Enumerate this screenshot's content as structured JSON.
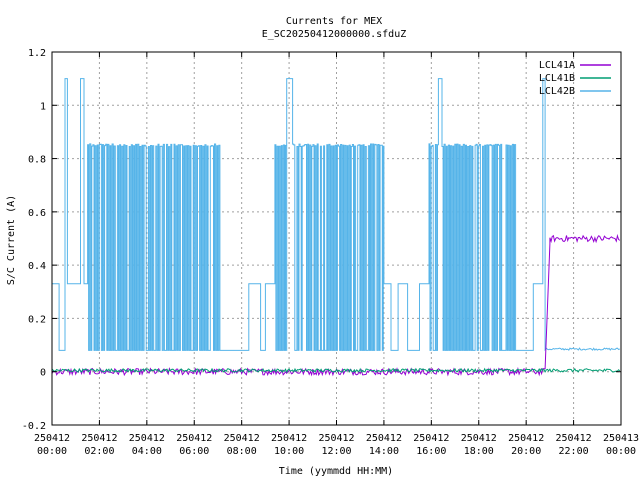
{
  "chart_data": {
    "type": "line",
    "title": "Currents for MEX",
    "subtitle": "E_SC20250412000000.sfduZ",
    "xlabel": "Time (yymmdd HH:MM)",
    "ylabel": "S/C Current (A)",
    "ylim": [
      -0.2,
      1.2
    ],
    "xlim_hours": [
      0,
      24
    ],
    "yticks": [
      "-0.2",
      "0",
      "0.2",
      "0.4",
      "0.6",
      "0.8",
      "1",
      "1.2"
    ],
    "xticks": [
      {
        "date": "250412",
        "time": "00:00"
      },
      {
        "date": "250412",
        "time": "02:00"
      },
      {
        "date": "250412",
        "time": "04:00"
      },
      {
        "date": "250412",
        "time": "06:00"
      },
      {
        "date": "250412",
        "time": "08:00"
      },
      {
        "date": "250412",
        "time": "10:00"
      },
      {
        "date": "250412",
        "time": "12:00"
      },
      {
        "date": "250412",
        "time": "14:00"
      },
      {
        "date": "250412",
        "time": "16:00"
      },
      {
        "date": "250412",
        "time": "18:00"
      },
      {
        "date": "250412",
        "time": "20:00"
      },
      {
        "date": "250412",
        "time": "22:00"
      },
      {
        "date": "250413",
        "time": "00:00"
      }
    ],
    "grid": true,
    "legend_position": "top-right",
    "series": [
      {
        "name": "LCL41A",
        "color": "#9400d3",
        "segments": [
          {
            "from": 0.0,
            "to": 20.8,
            "level": 0.0,
            "pattern": "noise",
            "amp": 0.012
          },
          {
            "from": 20.8,
            "to": 21.0,
            "level": 0.48,
            "pattern": "ramp"
          },
          {
            "from": 21.0,
            "to": 24.0,
            "level": 0.5,
            "pattern": "noise",
            "amp": 0.012
          }
        ]
      },
      {
        "name": "LCL41B",
        "color": "#009e73",
        "segments": [
          {
            "from": 0.0,
            "to": 24.0,
            "level": 0.005,
            "pattern": "noise",
            "amp": 0.006
          }
        ]
      },
      {
        "name": "LCL42B",
        "color": "#56b4e9",
        "segments": [
          {
            "from": 0.0,
            "to": 0.3,
            "level": 0.33,
            "pattern": "flat"
          },
          {
            "from": 0.3,
            "to": 0.55,
            "level": 0.08,
            "pattern": "flat"
          },
          {
            "from": 0.55,
            "to": 0.65,
            "level": 1.1,
            "pattern": "spike"
          },
          {
            "from": 0.65,
            "to": 1.2,
            "level": 0.33,
            "pattern": "flat"
          },
          {
            "from": 1.2,
            "to": 1.35,
            "level": 1.1,
            "pattern": "spike"
          },
          {
            "from": 1.35,
            "to": 1.5,
            "level": 0.33,
            "pattern": "flat"
          },
          {
            "from": 1.5,
            "to": 7.1,
            "level": 0.85,
            "low": 0.08,
            "pattern": "toggle"
          },
          {
            "from": 7.1,
            "to": 8.3,
            "level": 0.08,
            "pattern": "flat"
          },
          {
            "from": 8.3,
            "to": 8.8,
            "level": 0.33,
            "pattern": "flat"
          },
          {
            "from": 8.8,
            "to": 9.0,
            "level": 0.08,
            "pattern": "flat"
          },
          {
            "from": 9.0,
            "to": 9.4,
            "level": 0.33,
            "pattern": "flat"
          },
          {
            "from": 9.4,
            "to": 9.9,
            "level": 0.85,
            "low": 0.08,
            "pattern": "toggle"
          },
          {
            "from": 9.9,
            "to": 10.15,
            "level": 1.1,
            "pattern": "spike"
          },
          {
            "from": 10.15,
            "to": 14.0,
            "level": 0.85,
            "low": 0.08,
            "pattern": "toggle"
          },
          {
            "from": 14.0,
            "to": 14.3,
            "level": 0.33,
            "pattern": "flat"
          },
          {
            "from": 14.3,
            "to": 14.6,
            "level": 0.08,
            "pattern": "flat"
          },
          {
            "from": 14.6,
            "to": 15.0,
            "level": 0.33,
            "pattern": "flat"
          },
          {
            "from": 15.0,
            "to": 15.5,
            "level": 0.08,
            "pattern": "flat"
          },
          {
            "from": 15.5,
            "to": 15.9,
            "level": 0.33,
            "pattern": "flat"
          },
          {
            "from": 15.9,
            "to": 16.3,
            "level": 0.85,
            "low": 0.08,
            "pattern": "toggle"
          },
          {
            "from": 16.3,
            "to": 16.45,
            "level": 1.1,
            "pattern": "spike"
          },
          {
            "from": 16.45,
            "to": 19.6,
            "level": 0.85,
            "low": 0.08,
            "pattern": "toggle"
          },
          {
            "from": 19.6,
            "to": 20.3,
            "level": 0.08,
            "pattern": "flat"
          },
          {
            "from": 20.3,
            "to": 20.7,
            "level": 0.33,
            "pattern": "flat"
          },
          {
            "from": 20.7,
            "to": 20.8,
            "level": 1.1,
            "pattern": "spike"
          },
          {
            "from": 20.8,
            "to": 24.0,
            "level": 0.085,
            "pattern": "noise",
            "amp": 0.004
          }
        ]
      }
    ]
  }
}
